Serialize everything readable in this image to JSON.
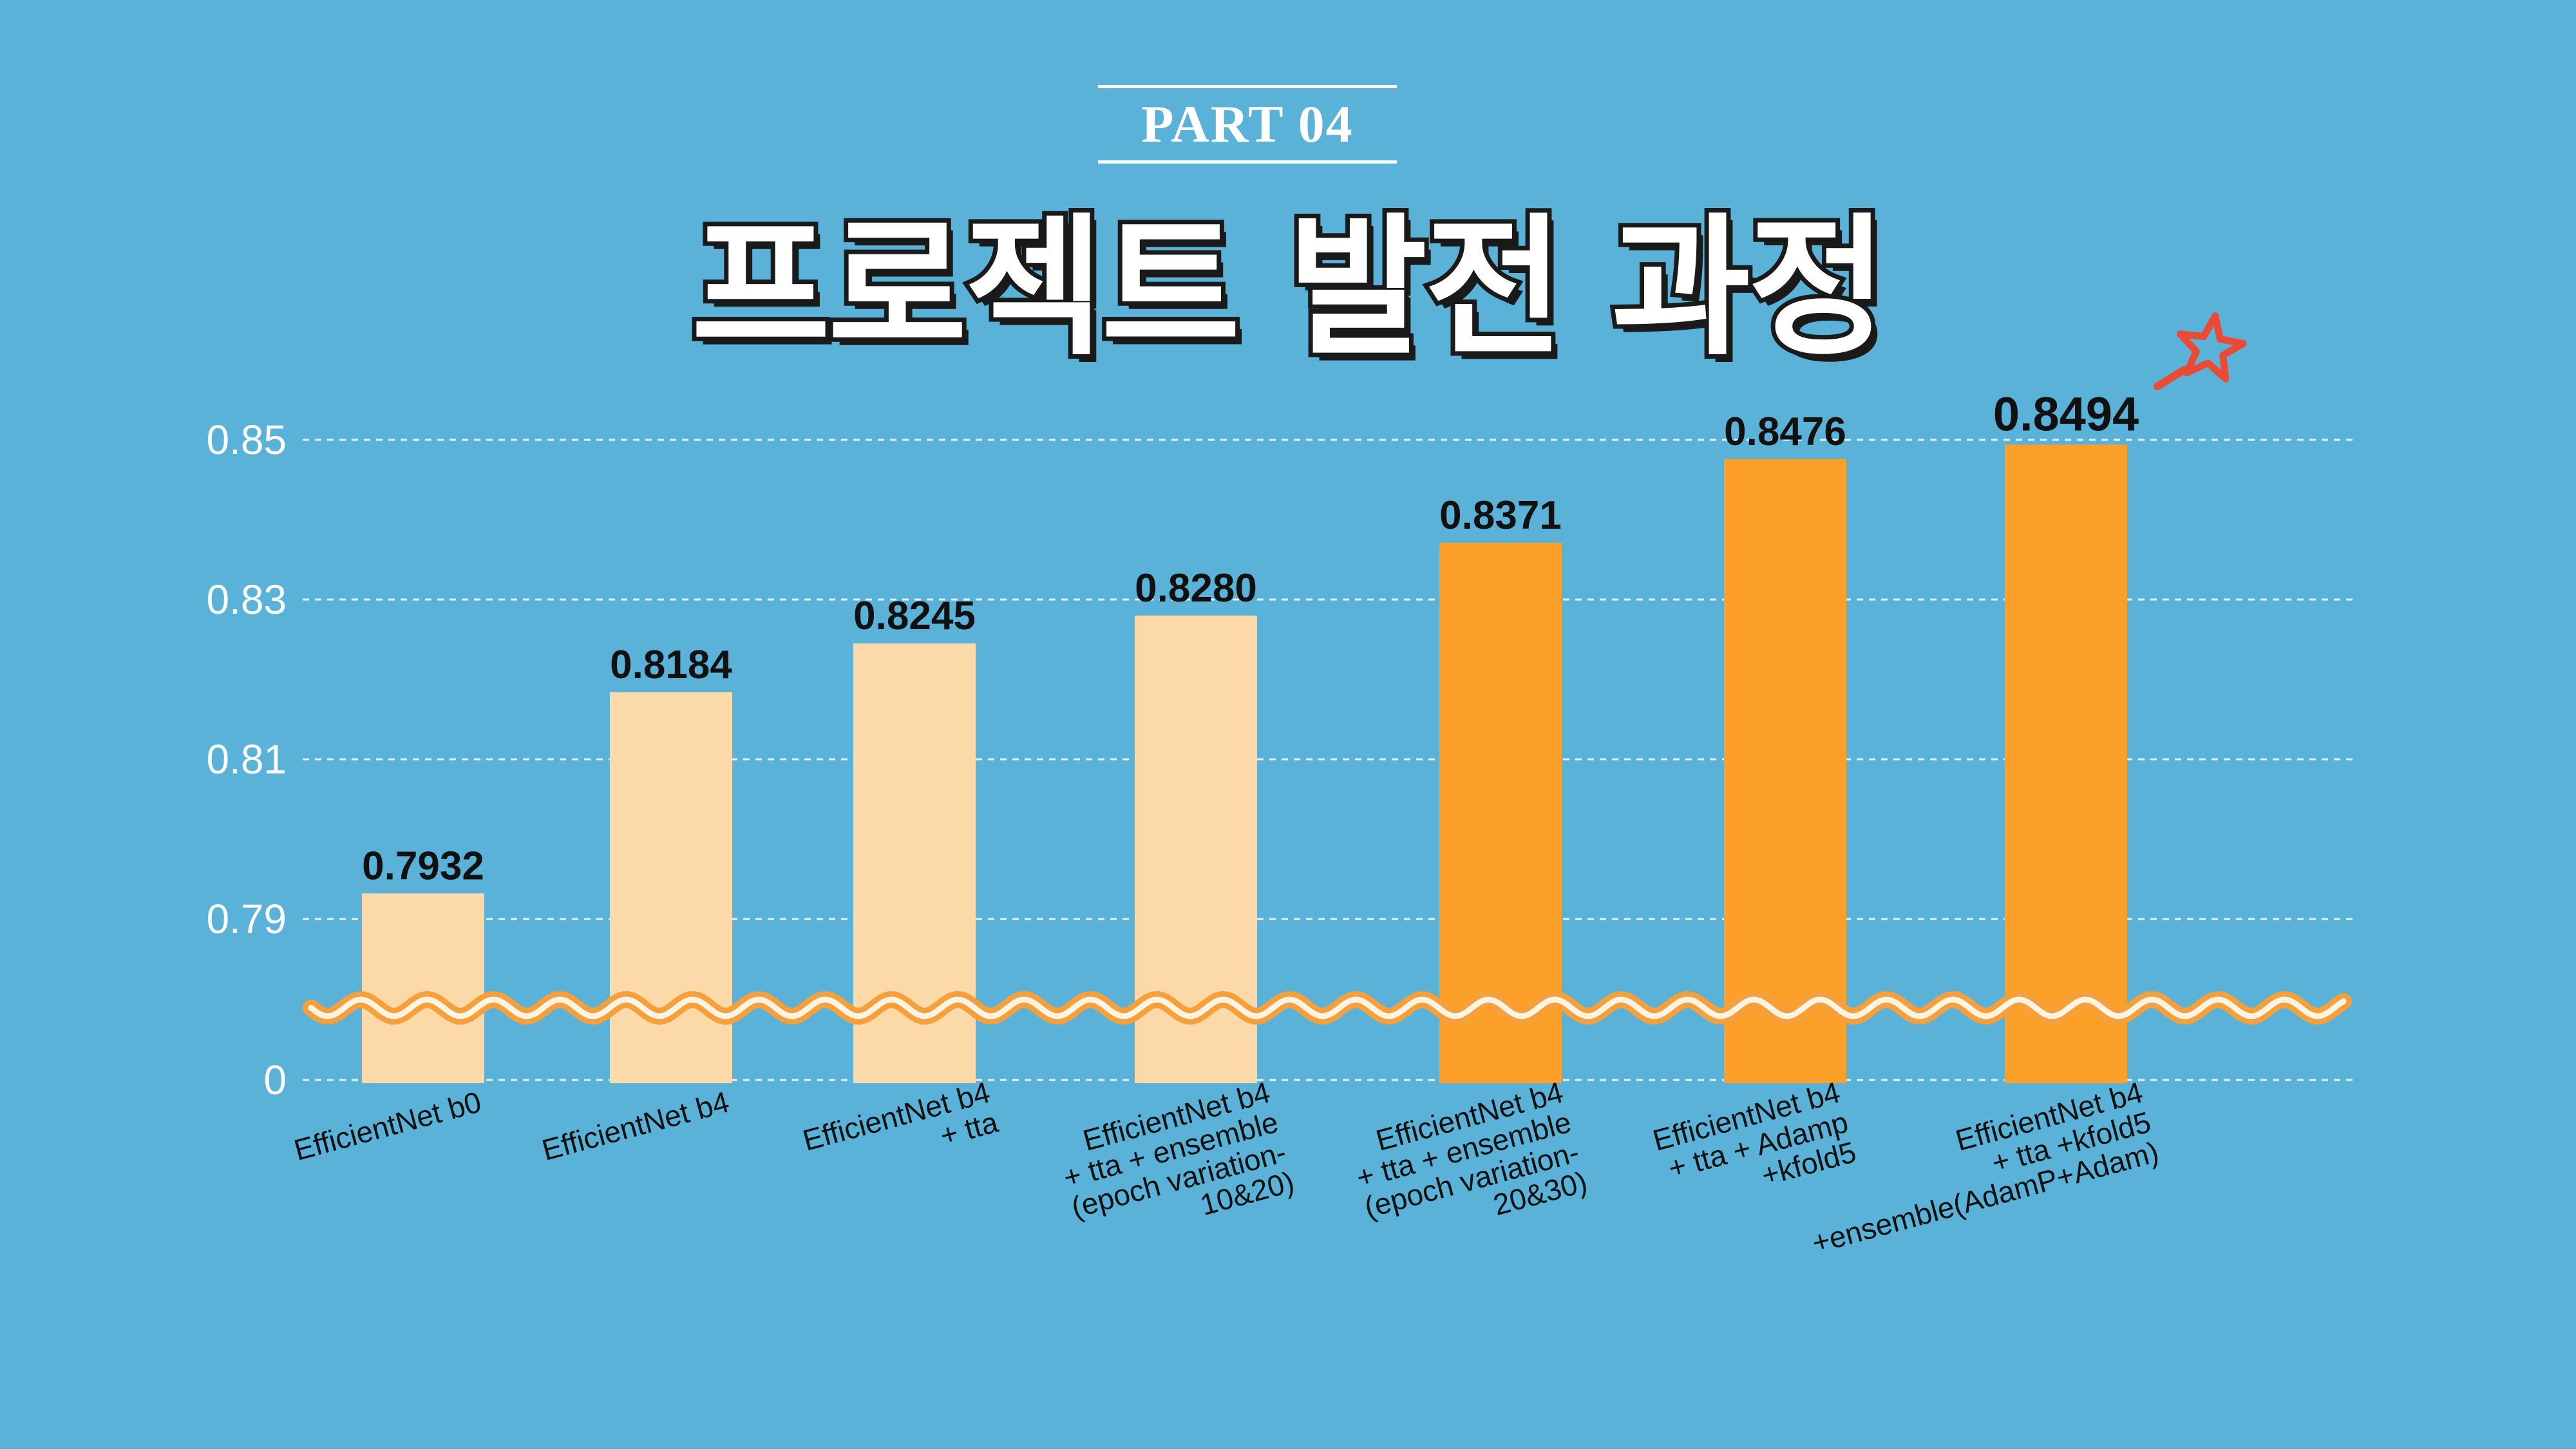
{
  "header": {
    "part_label": "PART 04",
    "title": "프로젝트 발전 과정"
  },
  "colors": {
    "background": "#5BB2D8",
    "bar_light": "#FBD9A8",
    "bar_highlight": "#FDA02A",
    "wave": "#F5A03C",
    "star": "#E94B37"
  },
  "chart_data": {
    "type": "bar",
    "title": "",
    "xlabel": "",
    "ylabel": "",
    "axis_break": true,
    "y_ticks": [
      "0",
      "0.79",
      "0.81",
      "0.83",
      "0.85"
    ],
    "ylim": [
      0.77,
      0.85
    ],
    "grid": true,
    "categories": [
      "EfficientNet b0",
      "EfficientNet b4",
      "EfficientNet b4\n+ tta",
      "EfficientNet b4\n+ tta + ensemble\n(epoch variation-\n10&20)",
      "EfficientNet b4\n+ tta + ensemble\n(epoch variation-\n20&30)",
      "EfficientNet b4\n+ tta + Adamp\n+kfold5",
      "EfficientNet b4\n+ tta +kfold5\n+ensemble(AdamP+Adam)"
    ],
    "values": [
      0.7932,
      0.8184,
      0.8245,
      0.828,
      0.8371,
      0.8476,
      0.8494
    ],
    "value_labels": [
      "0.7932",
      "0.8184",
      "0.8245",
      "0.8280",
      "0.8371",
      "0.8476",
      "0.8494"
    ],
    "highlighted": [
      false,
      false,
      false,
      false,
      true,
      true,
      true
    ],
    "best_marker": "star-icon"
  }
}
